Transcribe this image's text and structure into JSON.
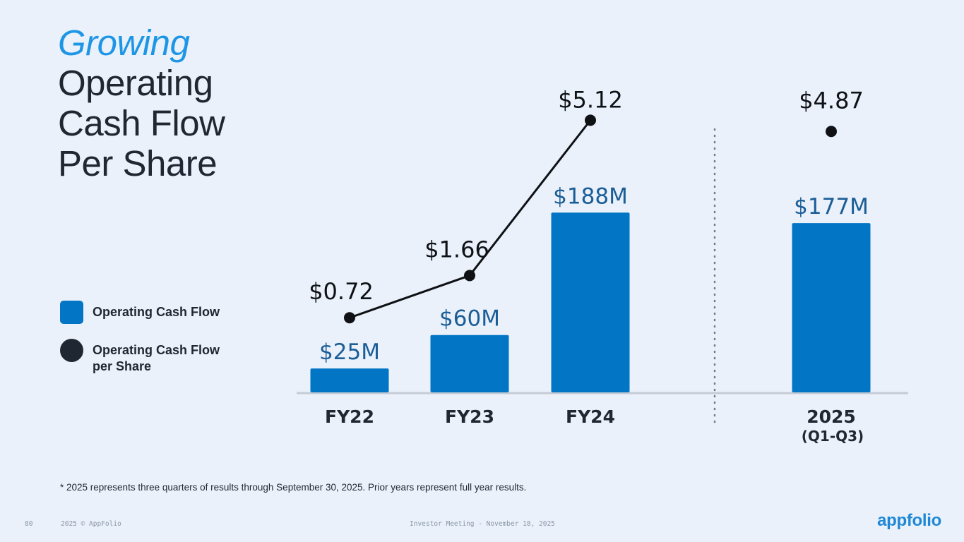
{
  "title": {
    "accent": "Growing",
    "rest": [
      "Operating",
      "Cash Flow",
      "Per Share"
    ]
  },
  "legend": [
    {
      "label": "Operating Cash Flow",
      "icon": "square-swatch"
    },
    {
      "label": "Operating Cash Flow per Share",
      "icon": "circle-swatch"
    }
  ],
  "chart_data": {
    "type": "bar",
    "categories": [
      "FY22",
      "FY23",
      "FY24",
      "2025"
    ],
    "category_sublabels": [
      "",
      "",
      "",
      "(Q1-Q3)"
    ],
    "series": [
      {
        "name": "Operating Cash Flow",
        "kind": "bar",
        "values": [
          25,
          60,
          188,
          177
        ],
        "labels": [
          "$25M",
          "$60M",
          "$188M",
          "$177M"
        ],
        "unit": "$M"
      },
      {
        "name": "Operating Cash Flow per Share",
        "kind": "line",
        "values": [
          0.72,
          1.66,
          5.12,
          4.87
        ],
        "labels": [
          "$0.72",
          "$1.66",
          "$5.12",
          "$4.87"
        ],
        "unit": "$",
        "connected_through_index": 2
      }
    ],
    "separator_before_index": 3
  },
  "footnote": "* 2025 represents three quarters of results through September 30, 2025. Prior years represent full year results.",
  "footer": {
    "page": "80",
    "copyright": "2025 © AppFolio",
    "event": "Investor Meeting - November 18, 2025",
    "logo_text": "appfolio"
  },
  "colors": {
    "bar": "#0276c5",
    "bar_label": "#1b5d96",
    "dot": "#0f1115",
    "accent": "#1e96e6"
  }
}
